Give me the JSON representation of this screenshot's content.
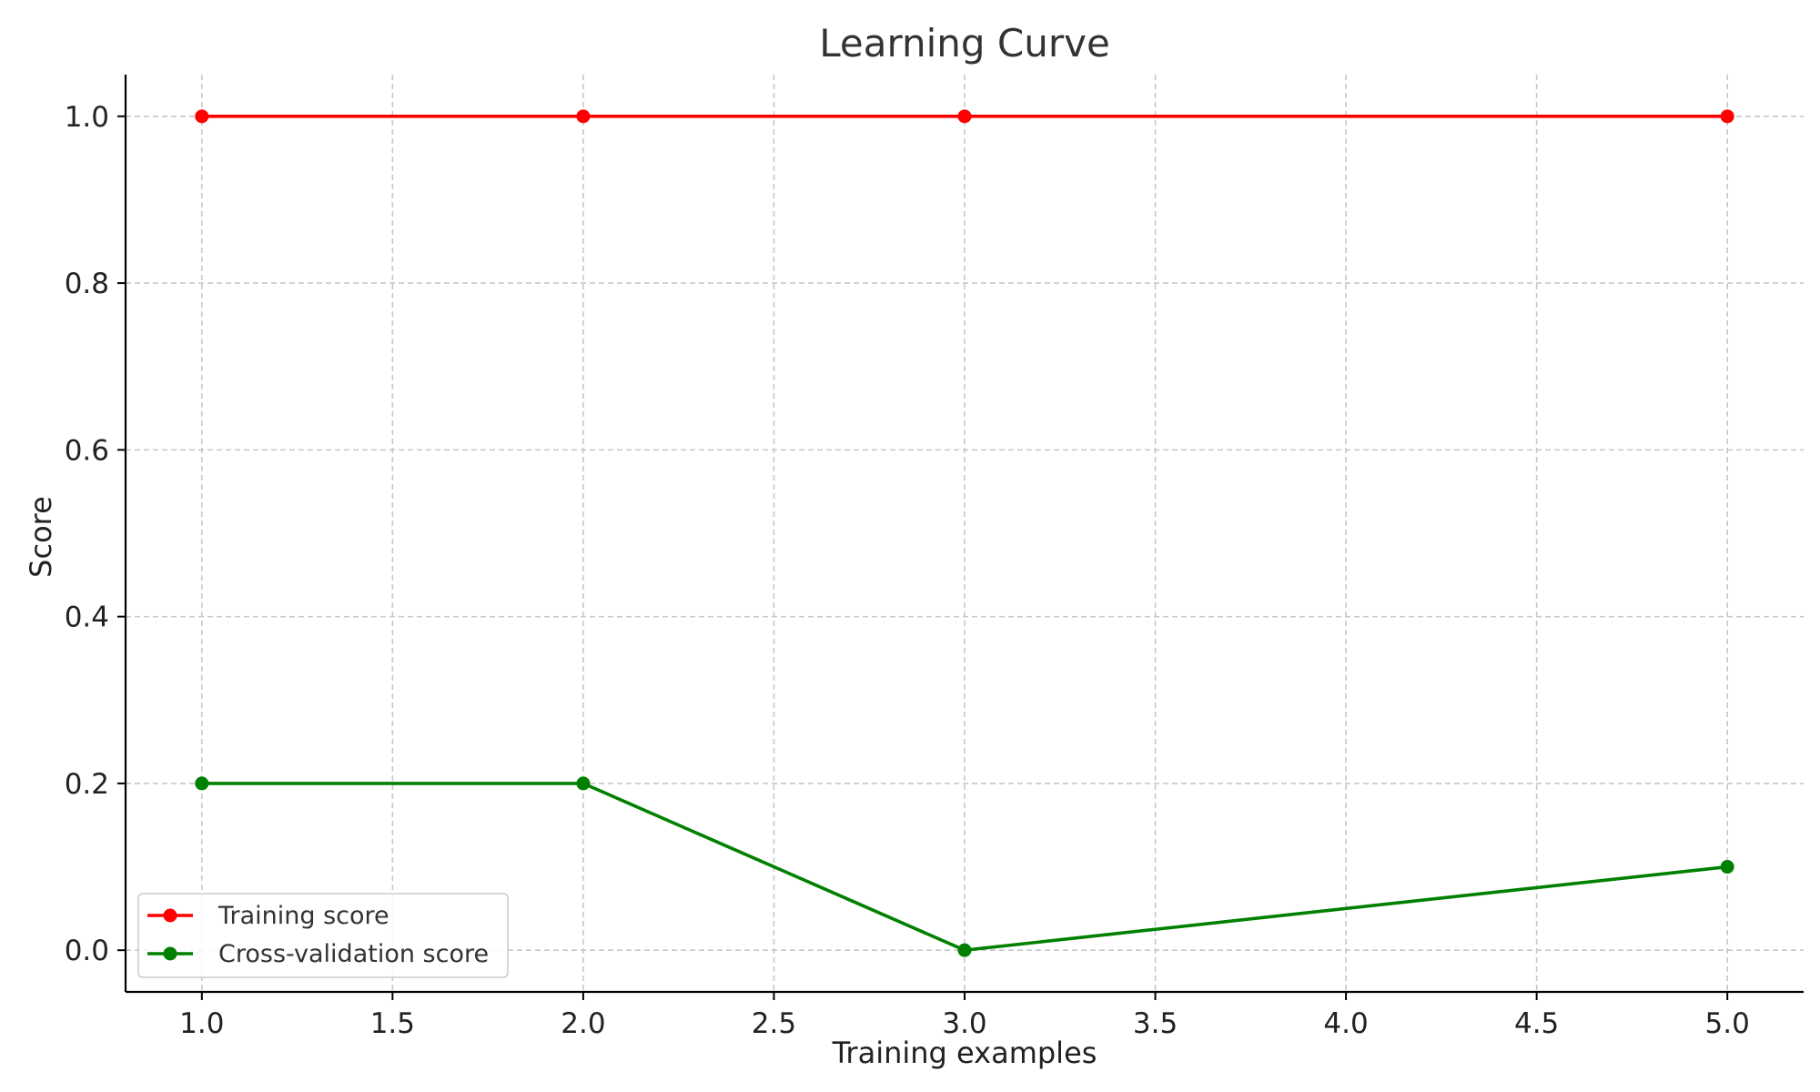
{
  "chart_data": {
    "type": "line",
    "title": "Learning Curve",
    "xlabel": "Training examples",
    "ylabel": "Score",
    "xlim": [
      0.8,
      5.2
    ],
    "ylim": [
      -0.05,
      1.05
    ],
    "xticks": [
      1.0,
      1.5,
      2.0,
      2.5,
      3.0,
      3.5,
      4.0,
      4.5,
      5.0
    ],
    "yticks": [
      0.0,
      0.2,
      0.4,
      0.6,
      0.8,
      1.0
    ],
    "xtick_labels": [
      "1.0",
      "1.5",
      "2.0",
      "2.5",
      "3.0",
      "3.5",
      "4.0",
      "4.5",
      "5.0"
    ],
    "ytick_labels": [
      "0.0",
      "0.2",
      "0.4",
      "0.6",
      "0.8",
      "1.0"
    ],
    "grid": true,
    "legend_position": "lower-left",
    "series": [
      {
        "name": "Training score",
        "color": "#ff0000",
        "x": [
          1,
          2,
          3,
          5
        ],
        "y": [
          1.0,
          1.0,
          1.0,
          1.0
        ]
      },
      {
        "name": "Cross-validation score",
        "color": "#008000",
        "x": [
          1,
          2,
          3,
          5
        ],
        "y": [
          0.2,
          0.2,
          0.0,
          0.1
        ]
      }
    ]
  }
}
